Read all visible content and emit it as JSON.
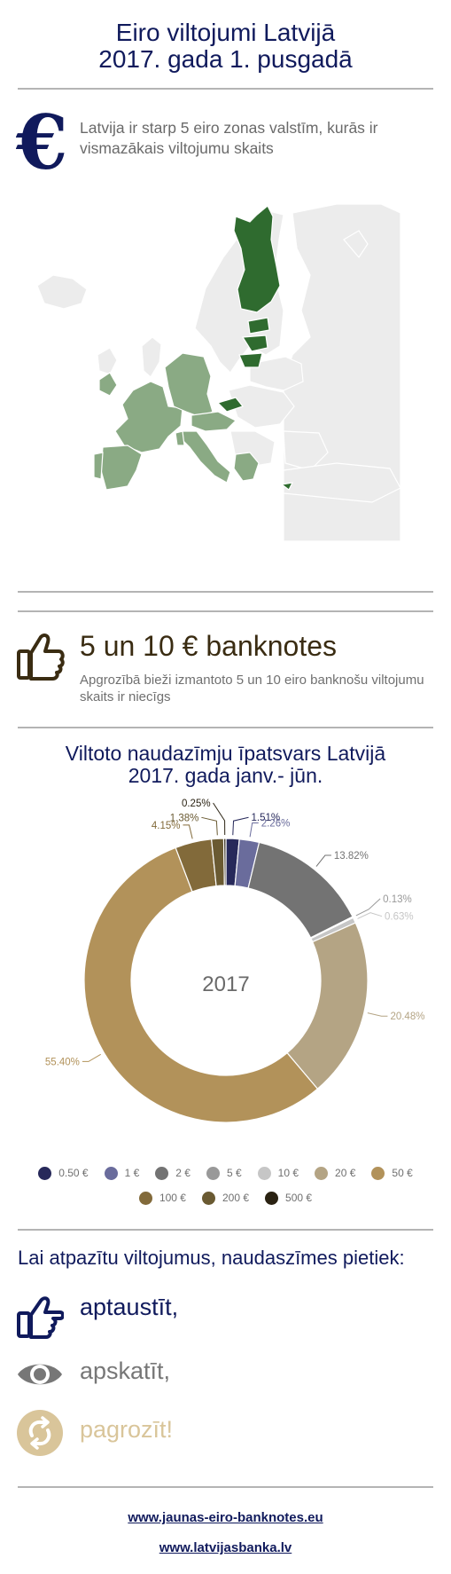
{
  "header": {
    "title_line1": "Eiro viltojumi Latvijā",
    "title_line2": "2017. gada 1. pusgadā"
  },
  "intro": {
    "icon": "euro-icon",
    "text": "Latvija ir starp 5 eiro zonas valstīm, kurās ir vismazākais viltojumu skaits"
  },
  "map": {
    "icon": "europe-map",
    "colors": {
      "base": "#ececec",
      "eurozone": "#8aaa84",
      "highlight": "#2f6b2f"
    }
  },
  "note": {
    "icon": "thumbs-up-icon",
    "title": "5 un 10 € banknotes",
    "text": "Apgrozībā bieži izmantoto 5 un 10 eiro banknošu viltojumu skaits ir niecīgs"
  },
  "chart_title": {
    "line1": "Viltoto naudazīmju īpatsvars Latvijā",
    "line2": "2017. gada janv.- jūn."
  },
  "chart_data": {
    "type": "pie",
    "donut": true,
    "center_label": "2017",
    "categories": [
      "0.50 €",
      "1 €",
      "2 €",
      "5 €",
      "10 €",
      "20 €",
      "50 €",
      "100 €",
      "200 €",
      "500 €"
    ],
    "values": [
      1.51,
      2.26,
      13.82,
      0.13,
      0.63,
      20.48,
      55.4,
      4.15,
      1.38,
      0.25
    ],
    "value_labels": [
      "1.51%",
      "2.26%",
      "13.82%",
      "0.13%",
      "0.63%",
      "20.48%",
      "55.40%",
      "4.15%",
      "1.38%",
      "0.25%"
    ],
    "colors": [
      "#27295a",
      "#6a6c9c",
      "#737373",
      "#999999",
      "#c6c6c6",
      "#b4a484",
      "#b2925a",
      "#826a3a",
      "#6a5a32",
      "#2a2212"
    ],
    "legend_placement": "bottom"
  },
  "tips": {
    "title": "Lai atpazītu viltojumus, naudaszīmes pietiek:",
    "items": [
      {
        "icon": "hand-pointing-icon",
        "text": "aptaustīt,",
        "color": "#101a5c"
      },
      {
        "icon": "eye-icon",
        "text": "apskatīt,",
        "color": "#777777"
      },
      {
        "icon": "rotate-icon",
        "text": "pagrozīt!",
        "color": "#d9c59a"
      }
    ]
  },
  "footer": {
    "link1": "www.jaunas-eiro-banknotes.eu",
    "link2": "www.latvijasbanka.lv"
  }
}
